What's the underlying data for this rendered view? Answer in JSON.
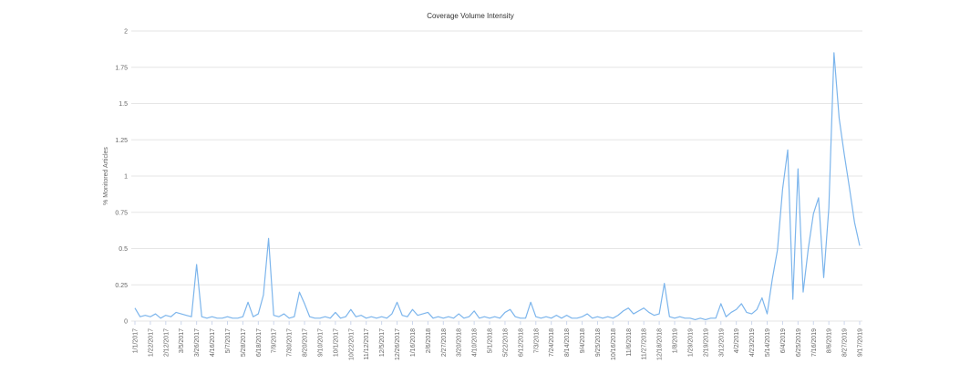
{
  "chart_data": {
    "type": "line",
    "title": "Coverage Volume Intensity",
    "y_label": "% Monitored Articles",
    "categories": [
      "1/1/2017",
      null,
      null,
      "1/22/2017",
      null,
      null,
      "2/12/2017",
      null,
      null,
      "3/5/2017",
      null,
      null,
      "3/26/2017",
      null,
      null,
      "4/16/2017",
      null,
      null,
      "5/7/2017",
      null,
      null,
      "5/28/2017",
      null,
      null,
      "6/18/2017",
      null,
      null,
      "7/9/2017",
      null,
      null,
      "7/30/2017",
      null,
      null,
      "8/20/2017",
      null,
      null,
      "9/10/2017",
      null,
      null,
      "10/1/2017",
      null,
      null,
      "10/22/2017",
      null,
      null,
      "11/12/2017",
      null,
      null,
      "12/5/2017",
      null,
      null,
      "12/26/2017",
      null,
      null,
      "1/16/2018",
      null,
      null,
      "2/6/2018",
      null,
      null,
      "2/27/2018",
      null,
      null,
      "3/20/2018",
      null,
      null,
      "4/10/2018",
      null,
      null,
      "5/1/2018",
      null,
      null,
      "5/22/2018",
      null,
      null,
      "6/12/2018",
      null,
      null,
      "7/3/2018",
      null,
      null,
      "7/24/2018",
      null,
      null,
      "8/14/2018",
      null,
      null,
      "9/4/2018",
      null,
      null,
      "9/25/2018",
      null,
      null,
      "10/16/2018",
      null,
      null,
      "11/6/2018",
      null,
      null,
      "11/27/2018",
      null,
      null,
      "12/18/2018",
      null,
      null,
      "1/8/2019",
      null,
      null,
      "1/29/2019",
      null,
      null,
      "2/19/2019",
      null,
      null,
      "3/12/2019",
      null,
      null,
      "4/2/2019",
      null,
      null,
      "4/23/2019",
      null,
      null,
      "5/14/2019",
      null,
      null,
      "6/4/2019",
      null,
      null,
      "6/25/2019",
      null,
      null,
      "7/16/2019",
      null,
      null,
      "8/6/2019",
      null,
      null,
      "8/27/2019",
      null,
      null,
      "9/17/2019"
    ],
    "series": [
      {
        "color": "#7cb5ec",
        "values": [
          0.09,
          0.03,
          0.04,
          0.03,
          0.05,
          0.02,
          0.04,
          0.03,
          0.06,
          0.05,
          0.04,
          0.03,
          0.39,
          0.03,
          0.02,
          0.03,
          0.02,
          0.02,
          0.03,
          0.02,
          0.02,
          0.03,
          0.13,
          0.03,
          0.05,
          0.18,
          0.57,
          0.04,
          0.03,
          0.05,
          0.02,
          0.03,
          0.2,
          0.12,
          0.03,
          0.02,
          0.02,
          0.03,
          0.02,
          0.06,
          0.02,
          0.03,
          0.08,
          0.03,
          0.04,
          0.02,
          0.03,
          0.02,
          0.03,
          0.02,
          0.05,
          0.13,
          0.04,
          0.03,
          0.08,
          0.04,
          0.05,
          0.06,
          0.02,
          0.03,
          0.02,
          0.03,
          0.02,
          0.05,
          0.02,
          0.03,
          0.07,
          0.02,
          0.03,
          0.02,
          0.03,
          0.02,
          0.06,
          0.08,
          0.03,
          0.02,
          0.02,
          0.13,
          0.03,
          0.02,
          0.03,
          0.02,
          0.04,
          0.02,
          0.04,
          0.02,
          0.02,
          0.03,
          0.05,
          0.02,
          0.03,
          0.02,
          0.03,
          0.02,
          0.04,
          0.07,
          0.09,
          0.05,
          0.07,
          0.09,
          0.06,
          0.04,
          0.05,
          0.26,
          0.03,
          0.02,
          0.03,
          0.02,
          0.02,
          0.01,
          0.02,
          0.01,
          0.02,
          0.02,
          0.12,
          0.03,
          0.06,
          0.08,
          0.12,
          0.06,
          0.05,
          0.08,
          0.16,
          0.05,
          0.29,
          0.49,
          0.91,
          1.18,
          0.15,
          1.05,
          0.2,
          0.5,
          0.74,
          0.85,
          0.3,
          0.78,
          1.85,
          1.4,
          1.15,
          0.92,
          0.68,
          0.52
        ]
      }
    ],
    "ylim": [
      0,
      2
    ],
    "yticks": [
      0,
      0.25,
      0.5,
      0.75,
      1,
      1.25,
      1.5,
      1.75,
      2
    ],
    "grid": true
  }
}
